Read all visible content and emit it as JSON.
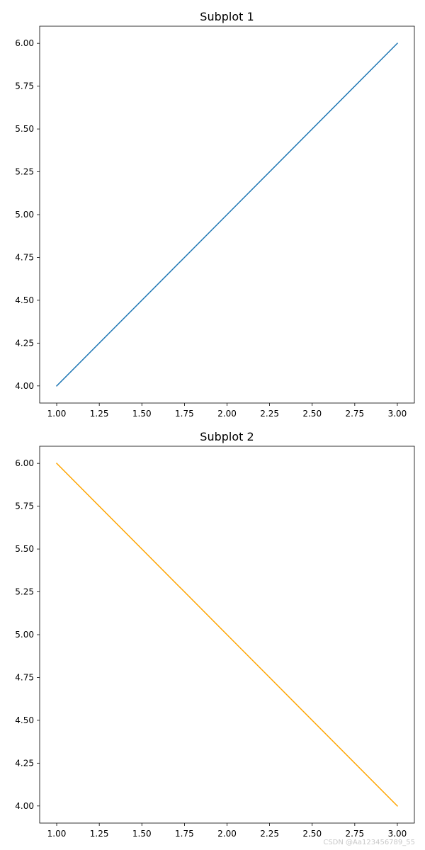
{
  "chart_data": [
    {
      "type": "line",
      "title": "Subplot 1",
      "xlabel": "",
      "ylabel": "",
      "x": [
        1,
        2,
        3
      ],
      "series": [
        {
          "values": [
            4,
            5,
            6
          ],
          "color": "#1f77b4"
        }
      ],
      "xlim": [
        0.9,
        3.1
      ],
      "ylim": [
        3.9,
        6.1
      ],
      "xticks": [
        "1.00",
        "1.25",
        "1.50",
        "1.75",
        "2.00",
        "2.25",
        "2.50",
        "2.75",
        "3.00"
      ],
      "yticks": [
        "4.00",
        "4.25",
        "4.50",
        "4.75",
        "5.00",
        "5.25",
        "5.50",
        "5.75",
        "6.00"
      ],
      "grid": false
    },
    {
      "type": "line",
      "title": "Subplot 2",
      "xlabel": "",
      "ylabel": "",
      "x": [
        1,
        2,
        3
      ],
      "series": [
        {
          "values": [
            6,
            5,
            4
          ],
          "color": "#ffa500"
        }
      ],
      "xlim": [
        0.9,
        3.1
      ],
      "ylim": [
        3.9,
        6.1
      ],
      "xticks": [
        "1.00",
        "1.25",
        "1.50",
        "1.75",
        "2.00",
        "2.25",
        "2.50",
        "2.75",
        "3.00"
      ],
      "yticks": [
        "4.00",
        "4.25",
        "4.50",
        "4.75",
        "5.00",
        "5.25",
        "5.50",
        "5.75",
        "6.00"
      ],
      "grid": false
    }
  ],
  "watermark": "CSDN @Aa123456789_55"
}
